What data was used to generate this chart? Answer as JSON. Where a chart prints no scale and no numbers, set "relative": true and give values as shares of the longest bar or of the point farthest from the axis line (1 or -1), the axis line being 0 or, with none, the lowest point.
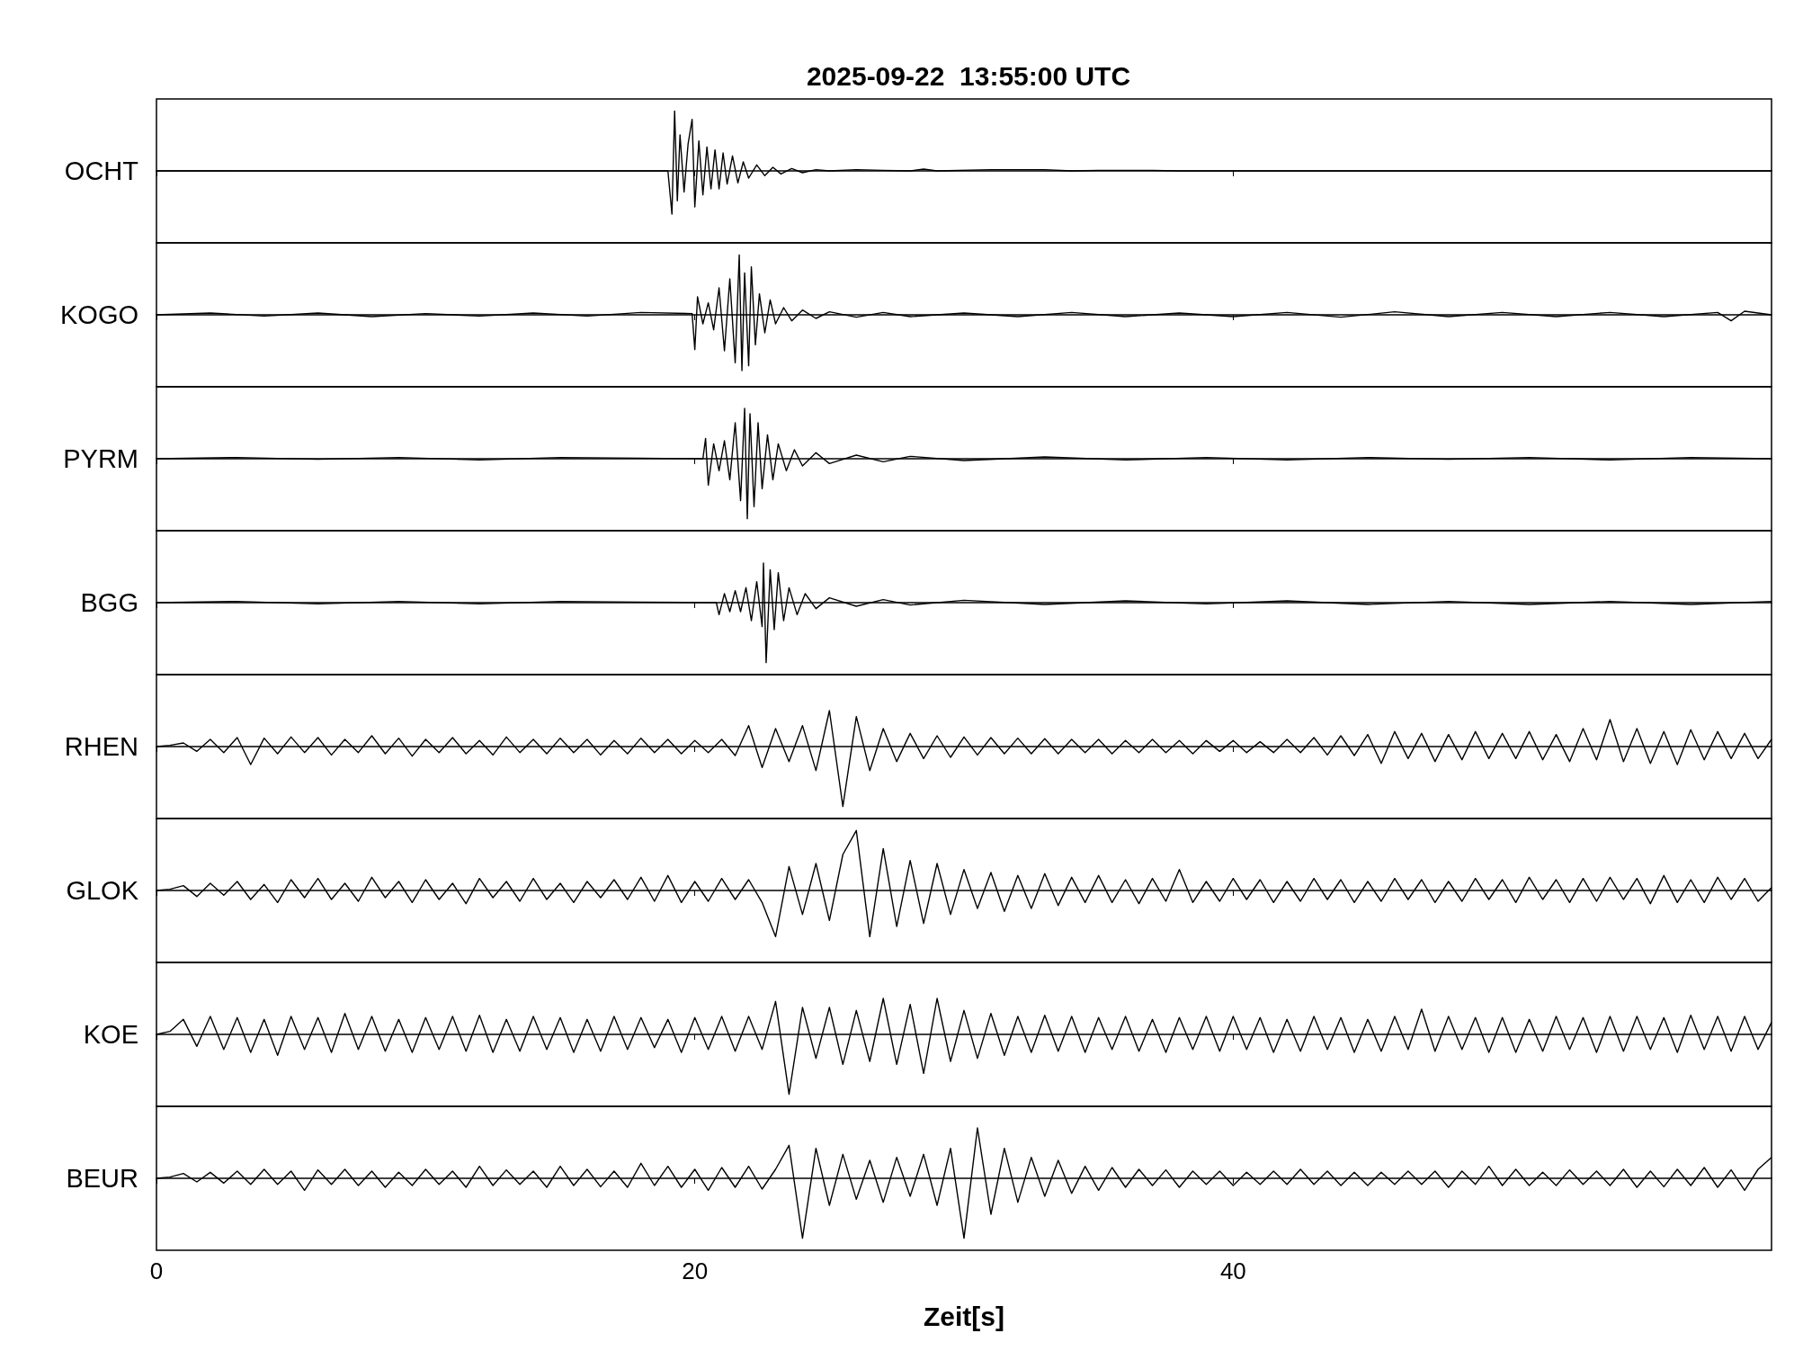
{
  "chart_data": [
    {
      "type": "line",
      "title": "2025-09-22  13:55:00 UTC",
      "ylabel": "OCHT",
      "relative": true,
      "color": "#000000",
      "xlim": [
        0,
        60
      ],
      "xticks": [
        0,
        20,
        40
      ],
      "tick_labels": false,
      "x": [
        0,
        19.0,
        19.15,
        19.25,
        19.35,
        19.45,
        19.6,
        19.75,
        19.9,
        20.0,
        20.15,
        20.3,
        20.45,
        20.6,
        20.75,
        20.9,
        21.05,
        21.2,
        21.4,
        21.6,
        21.8,
        22.0,
        22.3,
        22.6,
        22.9,
        23.2,
        23.6,
        24.0,
        24.5,
        25.0,
        26.0,
        27.0,
        28.0,
        28.5,
        29.0,
        31.0,
        33.0,
        34.0,
        35.0,
        36.0,
        37.0,
        38.0,
        60
      ],
      "values": [
        0,
        0,
        -0.72,
        1.0,
        -0.5,
        0.6,
        -0.35,
        0.45,
        0.86,
        -0.6,
        0.5,
        -0.4,
        0.4,
        -0.3,
        0.35,
        -0.3,
        0.3,
        -0.22,
        0.25,
        -0.2,
        0.15,
        -0.12,
        0.1,
        -0.08,
        0.06,
        -0.05,
        0.04,
        -0.03,
        0.02,
        0,
        0.02,
        0.01,
        0,
        0.03,
        0,
        0.02,
        0.02,
        0,
        0.01,
        0.01,
        0.01,
        0,
        0
      ]
    },
    {
      "type": "line",
      "ylabel": "KOGO",
      "relative": true,
      "color": "#000000",
      "xlim": [
        0,
        60
      ],
      "xticks": [
        0,
        20,
        40
      ],
      "tick_labels": false,
      "x": [
        0,
        2,
        4,
        6,
        8,
        10,
        12,
        14,
        16,
        18,
        19.9,
        20.0,
        20.1,
        20.3,
        20.5,
        20.7,
        20.9,
        21.1,
        21.3,
        21.5,
        21.65,
        21.75,
        21.85,
        22.0,
        22.1,
        22.25,
        22.4,
        22.6,
        22.8,
        23.0,
        23.3,
        23.6,
        24,
        24.5,
        25,
        26,
        27,
        28,
        30,
        32,
        34,
        36,
        38,
        40,
        42,
        44,
        46,
        48,
        50,
        52,
        54,
        56,
        58,
        58.5,
        59,
        60
      ],
      "values": [
        0,
        0.03,
        -0.02,
        0.03,
        -0.03,
        0.02,
        -0.02,
        0.03,
        -0.02,
        0.04,
        0.02,
        -0.58,
        0.3,
        -0.15,
        0.2,
        -0.25,
        0.45,
        -0.6,
        0.6,
        -0.8,
        1.0,
        -0.93,
        0.7,
        -0.85,
        0.8,
        -0.5,
        0.35,
        -0.3,
        0.25,
        -0.15,
        0.12,
        -0.1,
        0.08,
        -0.06,
        0.05,
        -0.04,
        0.04,
        -0.03,
        0.03,
        -0.03,
        0.04,
        -0.03,
        0.03,
        -0.03,
        0.04,
        -0.04,
        0.05,
        -0.03,
        0.04,
        -0.03,
        0.04,
        -0.03,
        0.04,
        -0.1,
        0.06,
        0
      ]
    },
    {
      "type": "line",
      "ylabel": "PYRM",
      "relative": true,
      "color": "#000000",
      "xlim": [
        0,
        60
      ],
      "xticks": [
        0,
        20,
        40
      ],
      "tick_labels": false,
      "x": [
        0,
        3,
        6,
        9,
        12,
        15,
        18,
        20.3,
        20.4,
        20.5,
        20.7,
        20.9,
        21.1,
        21.3,
        21.5,
        21.7,
        21.85,
        21.95,
        22.05,
        22.2,
        22.35,
        22.5,
        22.7,
        22.9,
        23.1,
        23.4,
        23.7,
        24,
        24.5,
        25,
        26,
        27,
        28,
        30,
        33,
        36,
        39,
        42,
        45,
        48,
        51,
        54,
        57,
        60
      ],
      "values": [
        0,
        0.02,
        -0.01,
        0.02,
        -0.02,
        0.02,
        0.01,
        0,
        0.34,
        -0.44,
        0.25,
        -0.2,
        0.3,
        -0.35,
        0.6,
        -0.7,
        0.84,
        -1.0,
        0.75,
        -0.8,
        0.6,
        -0.5,
        0.4,
        -0.35,
        0.25,
        -0.2,
        0.15,
        -0.12,
        0.1,
        -0.08,
        0.06,
        -0.05,
        0.04,
        -0.03,
        0.03,
        -0.02,
        0.02,
        -0.02,
        0.02,
        -0.01,
        0.02,
        -0.02,
        0.02,
        0
      ]
    },
    {
      "type": "line",
      "ylabel": "BGG",
      "relative": true,
      "color": "#000000",
      "xlim": [
        0,
        60
      ],
      "xticks": [
        0,
        20,
        40
      ],
      "tick_labels": false,
      "x": [
        0,
        3,
        6,
        9,
        12,
        15,
        18,
        20.8,
        20.9,
        21.1,
        21.3,
        21.5,
        21.7,
        21.9,
        22.1,
        22.3,
        22.5,
        22.55,
        22.65,
        22.8,
        22.95,
        23.1,
        23.3,
        23.5,
        23.8,
        24.1,
        24.5,
        25,
        26,
        27,
        28,
        30,
        33,
        36,
        39,
        42,
        45,
        48,
        51,
        54,
        57,
        60
      ],
      "values": [
        0,
        0.02,
        -0.02,
        0.02,
        -0.02,
        0.02,
        0.01,
        0,
        -0.2,
        0.15,
        -0.15,
        0.2,
        -0.15,
        0.25,
        -0.3,
        0.35,
        -0.4,
        0.66,
        -1.0,
        0.55,
        -0.45,
        0.5,
        -0.3,
        0.25,
        -0.2,
        0.15,
        -0.1,
        0.08,
        -0.06,
        0.05,
        -0.04,
        0.04,
        -0.03,
        0.03,
        -0.02,
        0.03,
        -0.03,
        0.02,
        -0.03,
        0.02,
        -0.03,
        0.02
      ]
    },
    {
      "type": "line",
      "ylabel": "RHEN",
      "relative": true,
      "color": "#000000",
      "xlim": [
        0,
        60
      ],
      "xticks": [
        0,
        20,
        40
      ],
      "tick_labels": false,
      "x": [
        0,
        0.5,
        1,
        1.5,
        2,
        2.5,
        3,
        3.5,
        4,
        4.5,
        5,
        5.5,
        6,
        6.5,
        7,
        7.5,
        8,
        8.5,
        9,
        9.5,
        10,
        10.5,
        11,
        11.5,
        12,
        12.5,
        13,
        13.5,
        14,
        14.5,
        15,
        15.5,
        16,
        16.5,
        17,
        17.5,
        18,
        18.5,
        19,
        19.5,
        20,
        20.5,
        21,
        21.5,
        22,
        22.5,
        23,
        23.5,
        24,
        24.5,
        25,
        25.5,
        26,
        26.5,
        27,
        27.5,
        28,
        28.5,
        29,
        29.5,
        30,
        30.5,
        31,
        31.5,
        32,
        32.5,
        33,
        33.5,
        34,
        34.5,
        35,
        35.5,
        36,
        36.5,
        37,
        37.5,
        38,
        38.5,
        39,
        39.5,
        40,
        40.5,
        41,
        41.5,
        42,
        42.5,
        43,
        43.5,
        44,
        44.5,
        45,
        45.5,
        46,
        46.5,
        47,
        47.5,
        48,
        48.5,
        49,
        49.5,
        50,
        50.5,
        51,
        51.5,
        52,
        52.5,
        53,
        53.5,
        54,
        54.5,
        55,
        55.5,
        56,
        56.5,
        57,
        57.5,
        58,
        58.5,
        59,
        59.5,
        60
      ],
      "values": [
        0,
        0.02,
        0.06,
        -0.08,
        0.12,
        -0.1,
        0.15,
        -0.3,
        0.14,
        -0.12,
        0.16,
        -0.1,
        0.15,
        -0.14,
        0.12,
        -0.1,
        0.18,
        -0.12,
        0.14,
        -0.16,
        0.12,
        -0.1,
        0.15,
        -0.12,
        0.1,
        -0.14,
        0.16,
        -0.1,
        0.12,
        -0.12,
        0.14,
        -0.1,
        0.12,
        -0.14,
        0.1,
        -0.12,
        0.14,
        -0.1,
        0.12,
        -0.12,
        0.1,
        -0.1,
        0.12,
        -0.15,
        0.35,
        -0.35,
        0.3,
        -0.25,
        0.35,
        -0.4,
        0.6,
        -1.0,
        0.5,
        -0.4,
        0.3,
        -0.25,
        0.22,
        -0.2,
        0.18,
        -0.18,
        0.16,
        -0.14,
        0.15,
        -0.12,
        0.14,
        -0.12,
        0.13,
        -0.12,
        0.12,
        -0.1,
        0.12,
        -0.12,
        0.1,
        -0.1,
        0.12,
        -0.1,
        0.1,
        -0.12,
        0.1,
        -0.08,
        0.1,
        -0.1,
        0.08,
        -0.1,
        0.12,
        -0.1,
        0.15,
        -0.14,
        0.18,
        -0.15,
        0.2,
        -0.28,
        0.25,
        -0.2,
        0.22,
        -0.25,
        0.2,
        -0.22,
        0.25,
        -0.2,
        0.22,
        -0.2,
        0.25,
        -0.22,
        0.2,
        -0.25,
        0.3,
        -0.22,
        0.45,
        -0.25,
        0.3,
        -0.28,
        0.25,
        -0.3,
        0.28,
        -0.22,
        0.25,
        -0.2,
        0.22,
        -0.2,
        0.12
      ]
    },
    {
      "type": "line",
      "ylabel": "GLOK",
      "relative": true,
      "color": "#000000",
      "xlim": [
        0,
        60
      ],
      "xticks": [
        0,
        20,
        40
      ],
      "tick_labels": false,
      "x": [
        0,
        0.5,
        1,
        1.5,
        2,
        2.5,
        3,
        3.5,
        4,
        4.5,
        5,
        5.5,
        6,
        6.5,
        7,
        7.5,
        8,
        8.5,
        9,
        9.5,
        10,
        10.5,
        11,
        11.5,
        12,
        12.5,
        13,
        13.5,
        14,
        14.5,
        15,
        15.5,
        16,
        16.5,
        17,
        17.5,
        18,
        18.5,
        19,
        19.5,
        20,
        20.5,
        21,
        21.5,
        22,
        22.5,
        23,
        23.5,
        24,
        24.5,
        25,
        25.5,
        26,
        26.5,
        27,
        27.5,
        28,
        28.5,
        29,
        29.5,
        30,
        30.5,
        31,
        31.5,
        32,
        32.5,
        33,
        33.5,
        34,
        34.5,
        35,
        35.5,
        36,
        36.5,
        37,
        37.5,
        38,
        38.5,
        39,
        39.5,
        40,
        40.5,
        41,
        41.5,
        42,
        42.5,
        43,
        43.5,
        44,
        44.5,
        45,
        45.5,
        46,
        46.5,
        47,
        47.5,
        48,
        48.5,
        49,
        49.5,
        50,
        50.5,
        51,
        51.5,
        52,
        52.5,
        53,
        53.5,
        54,
        54.5,
        55,
        55.5,
        56,
        56.5,
        57,
        57.5,
        58,
        58.5,
        59,
        59.5,
        60
      ],
      "values": [
        0,
        0.02,
        0.08,
        -0.1,
        0.12,
        -0.08,
        0.15,
        -0.15,
        0.1,
        -0.2,
        0.18,
        -0.12,
        0.2,
        -0.15,
        0.12,
        -0.18,
        0.22,
        -0.12,
        0.15,
        -0.2,
        0.18,
        -0.15,
        0.12,
        -0.22,
        0.2,
        -0.12,
        0.15,
        -0.18,
        0.2,
        -0.15,
        0.12,
        -0.2,
        0.15,
        -0.12,
        0.18,
        -0.15,
        0.22,
        -0.18,
        0.25,
        -0.2,
        0.15,
        -0.18,
        0.2,
        -0.15,
        0.18,
        -0.2,
        -0.77,
        0.4,
        -0.4,
        0.45,
        -0.5,
        0.6,
        1.0,
        -0.77,
        0.7,
        -0.6,
        0.5,
        -0.55,
        0.45,
        -0.4,
        0.35,
        -0.3,
        0.3,
        -0.35,
        0.25,
        -0.3,
        0.28,
        -0.25,
        0.22,
        -0.2,
        0.25,
        -0.2,
        0.18,
        -0.22,
        0.2,
        -0.18,
        0.35,
        -0.2,
        0.15,
        -0.18,
        0.2,
        -0.15,
        0.18,
        -0.2,
        0.15,
        -0.18,
        0.2,
        -0.15,
        0.18,
        -0.2,
        0.15,
        -0.18,
        0.2,
        -0.15,
        0.18,
        -0.2,
        0.15,
        -0.18,
        0.2,
        -0.15,
        0.18,
        -0.2,
        0.22,
        -0.15,
        0.18,
        -0.2,
        0.2,
        -0.18,
        0.22,
        -0.15,
        0.2,
        -0.22,
        0.25,
        -0.2,
        0.18,
        -0.2,
        0.22,
        -0.15,
        0.2,
        -0.18,
        0.05
      ]
    },
    {
      "type": "line",
      "ylabel": "KOE",
      "relative": true,
      "color": "#000000",
      "xlim": [
        0,
        60
      ],
      "xticks": [
        0,
        20,
        40
      ],
      "tick_labels": false,
      "x": [
        0,
        0.5,
        1,
        1.5,
        2,
        2.5,
        3,
        3.5,
        4,
        4.5,
        5,
        5.5,
        6,
        6.5,
        7,
        7.5,
        8,
        8.5,
        9,
        9.5,
        10,
        10.5,
        11,
        11.5,
        12,
        12.5,
        13,
        13.5,
        14,
        14.5,
        15,
        15.5,
        16,
        16.5,
        17,
        17.5,
        18,
        18.5,
        19,
        19.5,
        20,
        20.5,
        21,
        21.5,
        22,
        22.5,
        23,
        23.5,
        24,
        24.5,
        25,
        25.5,
        26,
        26.5,
        27,
        27.5,
        28,
        28.5,
        29,
        29.5,
        30,
        30.5,
        31,
        31.5,
        32,
        32.5,
        33,
        33.5,
        34,
        34.5,
        35,
        35.5,
        36,
        36.5,
        37,
        37.5,
        38,
        38.5,
        39,
        39.5,
        40,
        40.5,
        41,
        41.5,
        42,
        42.5,
        43,
        43.5,
        44,
        44.5,
        45,
        45.5,
        46,
        46.5,
        47,
        47.5,
        48,
        48.5,
        49,
        49.5,
        50,
        50.5,
        51,
        51.5,
        52,
        52.5,
        53,
        53.5,
        54,
        54.5,
        55,
        55.5,
        56,
        56.5,
        57,
        57.5,
        58,
        58.5,
        59,
        59.5,
        60
      ],
      "values": [
        0,
        0.05,
        0.25,
        -0.2,
        0.3,
        -0.25,
        0.28,
        -0.3,
        0.25,
        -0.35,
        0.3,
        -0.25,
        0.28,
        -0.3,
        0.35,
        -0.25,
        0.3,
        -0.28,
        0.25,
        -0.3,
        0.28,
        -0.25,
        0.3,
        -0.28,
        0.32,
        -0.3,
        0.25,
        -0.28,
        0.3,
        -0.25,
        0.28,
        -0.3,
        0.25,
        -0.28,
        0.3,
        -0.25,
        0.28,
        -0.22,
        0.25,
        -0.3,
        0.28,
        -0.25,
        0.3,
        -0.28,
        0.3,
        -0.25,
        0.55,
        -1.0,
        0.45,
        -0.4,
        0.45,
        -0.5,
        0.4,
        -0.45,
        0.6,
        -0.5,
        0.5,
        -0.65,
        0.6,
        -0.45,
        0.4,
        -0.4,
        0.35,
        -0.35,
        0.3,
        -0.3,
        0.32,
        -0.28,
        0.3,
        -0.3,
        0.28,
        -0.25,
        0.3,
        -0.28,
        0.25,
        -0.3,
        0.28,
        -0.25,
        0.3,
        -0.28,
        0.3,
        -0.25,
        0.28,
        -0.3,
        0.25,
        -0.28,
        0.3,
        -0.25,
        0.28,
        -0.3,
        0.25,
        -0.28,
        0.3,
        -0.25,
        0.42,
        -0.28,
        0.3,
        -0.25,
        0.28,
        -0.3,
        0.28,
        -0.3,
        0.25,
        -0.28,
        0.3,
        -0.25,
        0.28,
        -0.3,
        0.3,
        -0.28,
        0.3,
        -0.25,
        0.28,
        -0.3,
        0.32,
        -0.25,
        0.3,
        -0.28,
        0.3,
        -0.25,
        0.2
      ]
    },
    {
      "type": "line",
      "ylabel": "BEUR",
      "xlabel": "Zeit[s]",
      "relative": true,
      "color": "#000000",
      "xlim": [
        0,
        60
      ],
      "xticks": [
        0,
        20,
        40
      ],
      "tick_labels": "x",
      "x": [
        0,
        0.5,
        1,
        1.5,
        2,
        2.5,
        3,
        3.5,
        4,
        4.5,
        5,
        5.5,
        6,
        6.5,
        7,
        7.5,
        8,
        8.5,
        9,
        9.5,
        10,
        10.5,
        11,
        11.5,
        12,
        12.5,
        13,
        13.5,
        14,
        14.5,
        15,
        15.5,
        16,
        16.5,
        17,
        17.5,
        18,
        18.5,
        19,
        19.5,
        20,
        20.5,
        21,
        21.5,
        22,
        22.5,
        23,
        23.5,
        24,
        24.5,
        25,
        25.5,
        26,
        26.5,
        27,
        27.5,
        28,
        28.5,
        29,
        29.5,
        30,
        30.5,
        31,
        31.5,
        32,
        32.5,
        33,
        33.5,
        34,
        34.5,
        35,
        35.5,
        36,
        36.5,
        37,
        37.5,
        38,
        38.5,
        39,
        39.5,
        40,
        40.5,
        41,
        41.5,
        42,
        42.5,
        43,
        43.5,
        44,
        44.5,
        45,
        45.5,
        46,
        46.5,
        47,
        47.5,
        48,
        48.5,
        49,
        49.5,
        50,
        50.5,
        51,
        51.5,
        52,
        52.5,
        53,
        53.5,
        54,
        54.5,
        55,
        55.5,
        56,
        56.5,
        57,
        57.5,
        58,
        58.5,
        59,
        59.5,
        60
      ],
      "values": [
        0,
        0.02,
        0.08,
        -0.06,
        0.1,
        -0.08,
        0.12,
        -0.1,
        0.15,
        -0.1,
        0.12,
        -0.2,
        0.14,
        -0.1,
        0.15,
        -0.12,
        0.12,
        -0.15,
        0.1,
        -0.12,
        0.15,
        -0.1,
        0.12,
        -0.15,
        0.2,
        -0.12,
        0.14,
        -0.1,
        0.12,
        -0.15,
        0.2,
        -0.12,
        0.15,
        -0.14,
        0.12,
        -0.15,
        0.25,
        -0.12,
        0.2,
        -0.15,
        0.15,
        -0.2,
        0.18,
        -0.15,
        0.2,
        -0.18,
        0.15,
        0.55,
        -1.0,
        0.5,
        -0.45,
        0.4,
        -0.35,
        0.3,
        -0.4,
        0.35,
        -0.3,
        0.4,
        -0.45,
        0.5,
        -1.0,
        0.84,
        -0.6,
        0.5,
        -0.4,
        0.35,
        -0.3,
        0.3,
        -0.25,
        0.2,
        -0.2,
        0.18,
        -0.15,
        0.15,
        -0.12,
        0.14,
        -0.15,
        0.12,
        -0.1,
        0.12,
        -0.12,
        0.1,
        -0.1,
        0.12,
        -0.1,
        0.15,
        -0.1,
        0.12,
        -0.12,
        0.1,
        -0.12,
        0.1,
        -0.1,
        0.12,
        -0.1,
        0.12,
        -0.15,
        0.12,
        -0.1,
        0.2,
        -0.12,
        0.15,
        -0.12,
        0.1,
        -0.12,
        0.14,
        -0.1,
        0.12,
        -0.12,
        0.15,
        -0.15,
        0.12,
        -0.14,
        0.15,
        -0.12,
        0.18,
        -0.15,
        0.14,
        -0.2,
        0.15,
        0.35
      ]
    }
  ]
}
